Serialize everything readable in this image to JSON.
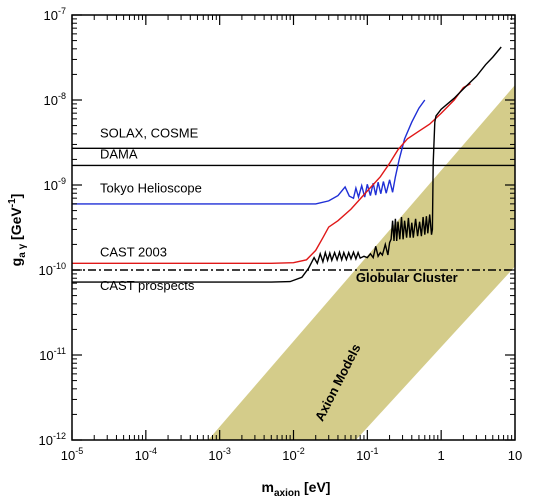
{
  "chart_data": {
    "type": "line",
    "x_scale": "log",
    "y_scale": "log",
    "xlim": [
      1e-05,
      10
    ],
    "ylim": [
      1e-12,
      1e-07
    ],
    "xlabel": {
      "main": "m",
      "sub": "axion",
      "unit": " [eV]"
    },
    "ylabel": {
      "main": "g",
      "sub": "a γ",
      "unit": " [GeV",
      "unit_exp": "-1",
      "unit_close": "]"
    },
    "x_ticks": [
      {
        "value": 1e-05,
        "base": "10",
        "exp": "-5"
      },
      {
        "value": 0.0001,
        "base": "10",
        "exp": "-4"
      },
      {
        "value": 0.001,
        "base": "10",
        "exp": "-3"
      },
      {
        "value": 0.01,
        "base": "10",
        "exp": "-2"
      },
      {
        "value": 0.1,
        "base": "10",
        "exp": "-1"
      },
      {
        "value": 1,
        "base": "1",
        "exp": ""
      },
      {
        "value": 10,
        "base": "10",
        "exp": ""
      }
    ],
    "y_ticks": [
      {
        "value": 1e-12,
        "base": "10",
        "exp": "-12"
      },
      {
        "value": 1e-11,
        "base": "10",
        "exp": "-11"
      },
      {
        "value": 1e-10,
        "base": "10",
        "exp": "-10"
      },
      {
        "value": 1e-09,
        "base": "10",
        "exp": "-9"
      },
      {
        "value": 1e-08,
        "base": "10",
        "exp": "-8"
      },
      {
        "value": 1e-07,
        "base": "10",
        "exp": "-7"
      }
    ],
    "band": {
      "name": "Axion Models",
      "color": "#d4cc8a",
      "lower": [
        [
          0.07,
          1e-12
        ],
        [
          10,
          1.1e-10
        ]
      ],
      "upper": [
        [
          0.0007,
          1e-12
        ],
        [
          10,
          1.5e-08
        ]
      ]
    },
    "series": [
      {
        "id": "solax",
        "label": "SOLAX, COSME",
        "color": "#000000",
        "dash": "",
        "points": [
          [
            1e-05,
            2.7e-09
          ],
          [
            10,
            2.7e-09
          ]
        ]
      },
      {
        "id": "dama",
        "label": "DAMA",
        "color": "#000000",
        "dash": "",
        "points": [
          [
            1e-05,
            1.7e-09
          ],
          [
            10,
            1.7e-09
          ]
        ]
      },
      {
        "id": "globular",
        "label": "Globular Cluster",
        "color": "#000000",
        "dash": "8,3,2,3",
        "points": [
          [
            1e-05,
            1e-10
          ],
          [
            10,
            1e-10
          ]
        ]
      },
      {
        "id": "tokyo",
        "label": "Tokyo Helioscope",
        "color": "#1f2fd6",
        "dash": "",
        "points": [
          [
            1e-05,
            6e-10
          ],
          [
            0.02,
            6e-10
          ],
          [
            0.03,
            6.5e-10
          ],
          [
            0.04,
            7.5e-10
          ],
          [
            0.05,
            9.5e-10
          ],
          [
            0.057,
            7.4e-10
          ],
          [
            0.065,
            7e-10
          ],
          [
            0.07,
            9.2e-10
          ],
          [
            0.076,
            7.2e-10
          ],
          [
            0.084,
            9.8e-10
          ],
          [
            0.092,
            7.2e-10
          ],
          [
            0.1,
            1.02e-09
          ],
          [
            0.11,
            7.5e-10
          ],
          [
            0.12,
            1.05e-09
          ],
          [
            0.13,
            7.6e-10
          ],
          [
            0.14,
            1.08e-09
          ],
          [
            0.152,
            7.9e-10
          ],
          [
            0.165,
            1.1e-09
          ],
          [
            0.18,
            8e-10
          ],
          [
            0.2,
            1.15e-09
          ],
          [
            0.22,
            8.2e-10
          ],
          [
            0.24,
            1.25e-09
          ],
          [
            0.27,
            2e-09
          ],
          [
            0.32,
            3.5e-09
          ],
          [
            0.4,
            5.5e-09
          ],
          [
            0.5,
            8e-09
          ],
          [
            0.6,
            1e-08
          ]
        ]
      },
      {
        "id": "cast2003",
        "label": "CAST 2003",
        "color": "#e01818",
        "dash": "",
        "points": [
          [
            1e-05,
            1.2e-10
          ],
          [
            0.005,
            1.2e-10
          ],
          [
            0.01,
            1.22e-10
          ],
          [
            0.015,
            1.32e-10
          ],
          [
            0.02,
            1.7e-10
          ],
          [
            0.025,
            2.4e-10
          ],
          [
            0.03,
            3.2e-10
          ],
          [
            0.04,
            3.8e-10
          ],
          [
            0.06,
            5.2e-10
          ],
          [
            0.1,
            8.5e-10
          ],
          [
            0.15,
            1.25e-09
          ],
          [
            0.2,
            1.8e-09
          ],
          [
            0.26,
            2.6e-09
          ],
          [
            0.35,
            3.5e-09
          ],
          [
            0.5,
            4.3e-09
          ],
          [
            0.7,
            5.2e-09
          ],
          [
            1,
            7e-09
          ],
          [
            1.5,
            1e-08
          ],
          [
            2,
            1.4e-08
          ],
          [
            2.5,
            1.55e-08
          ]
        ]
      },
      {
        "id": "castprospects",
        "label": "CAST prospects",
        "color": "#000000",
        "dash": "",
        "points": [
          [
            1e-05,
            7.2e-11
          ],
          [
            0.005,
            7.2e-11
          ],
          [
            0.009,
            7.3e-11
          ],
          [
            0.013,
            8.2e-11
          ],
          [
            0.016,
            1.05e-10
          ],
          [
            0.019,
            1.4e-10
          ],
          [
            0.021,
            1.2e-10
          ],
          [
            0.023,
            1.55e-10
          ],
          [
            0.025,
            1.25e-10
          ],
          [
            0.027,
            1.6e-10
          ],
          [
            0.029,
            1.3e-10
          ],
          [
            0.031,
            1.58e-10
          ],
          [
            0.033,
            1.3e-10
          ],
          [
            0.036,
            1.6e-10
          ],
          [
            0.039,
            1.32e-10
          ],
          [
            0.042,
            1.62e-10
          ],
          [
            0.045,
            1.32e-10
          ],
          [
            0.048,
            1.6e-10
          ],
          [
            0.052,
            1.33e-10
          ],
          [
            0.056,
            1.6e-10
          ],
          [
            0.06,
            1.35e-10
          ],
          [
            0.065,
            1.62e-10
          ],
          [
            0.07,
            1.35e-10
          ],
          [
            0.075,
            1.6e-10
          ],
          [
            0.08,
            1.38e-10
          ],
          [
            0.09,
            1.45e-10
          ],
          [
            0.1,
            1.4e-10
          ],
          [
            0.11,
            1.55e-10
          ],
          [
            0.12,
            1.4e-10
          ],
          [
            0.13,
            1.9e-10
          ],
          [
            0.14,
            1.45e-10
          ],
          [
            0.15,
            1.6e-10
          ],
          [
            0.16,
            1.5e-10
          ],
          [
            0.175,
            2e-10
          ],
          [
            0.19,
            1.5e-10
          ],
          [
            0.2,
            2.1e-10
          ],
          [
            0.21,
            2.3e-10
          ],
          [
            0.22,
            3.8e-10
          ],
          [
            0.23,
            2.2e-10
          ],
          [
            0.24,
            4e-10
          ],
          [
            0.25,
            2.2e-10
          ],
          [
            0.26,
            3.7e-10
          ],
          [
            0.275,
            2.3e-10
          ],
          [
            0.29,
            4.2e-10
          ],
          [
            0.305,
            2.3e-10
          ],
          [
            0.32,
            3.8e-10
          ],
          [
            0.34,
            2.4e-10
          ],
          [
            0.36,
            4.1e-10
          ],
          [
            0.38,
            2.4e-10
          ],
          [
            0.4,
            3.6e-10
          ],
          [
            0.42,
            2.4e-10
          ],
          [
            0.45,
            4e-10
          ],
          [
            0.48,
            2.5e-10
          ],
          [
            0.51,
            3.7e-10
          ],
          [
            0.54,
            2.5e-10
          ],
          [
            0.57,
            4.2e-10
          ],
          [
            0.6,
            2.6e-10
          ],
          [
            0.63,
            4.3e-10
          ],
          [
            0.66,
            2.7e-10
          ],
          [
            0.7,
            4.5e-10
          ],
          [
            0.74,
            2.6e-10
          ],
          [
            0.76,
            3e-10
          ],
          [
            0.78,
            1.8e-09
          ],
          [
            0.82,
            5.5e-09
          ],
          [
            0.85,
            6.5e-09
          ],
          [
            1,
            7.8e-09
          ],
          [
            1.5,
            1.05e-08
          ],
          [
            2,
            1.35e-08
          ],
          [
            3,
            1.9e-08
          ],
          [
            4,
            2.6e-08
          ],
          [
            5,
            3.2e-08
          ],
          [
            6.5,
            4.2e-08
          ]
        ]
      }
    ],
    "annotations": [
      {
        "text": "SOLAX, COSME",
        "x": 1e-05,
        "y": 3.6e-09
      },
      {
        "text": "DAMA",
        "x": 1e-05,
        "y": 2.05e-09
      },
      {
        "text": "Tokyo Helioscope",
        "x": 1e-05,
        "y": 8.2e-10
      },
      {
        "text": "CAST 2003",
        "x": 1e-05,
        "y": 1.45e-10
      },
      {
        "text": "CAST prospects",
        "x": 1e-05,
        "y": 5.8e-11
      }
    ],
    "bold_annotations": [
      {
        "text": "Globular Cluster",
        "x": 0.07,
        "y": 7.2e-11,
        "rotate": 0
      },
      {
        "text": "Axion Models",
        "x": 0.045,
        "y": 4.5e-12,
        "rotate": -63
      }
    ]
  }
}
